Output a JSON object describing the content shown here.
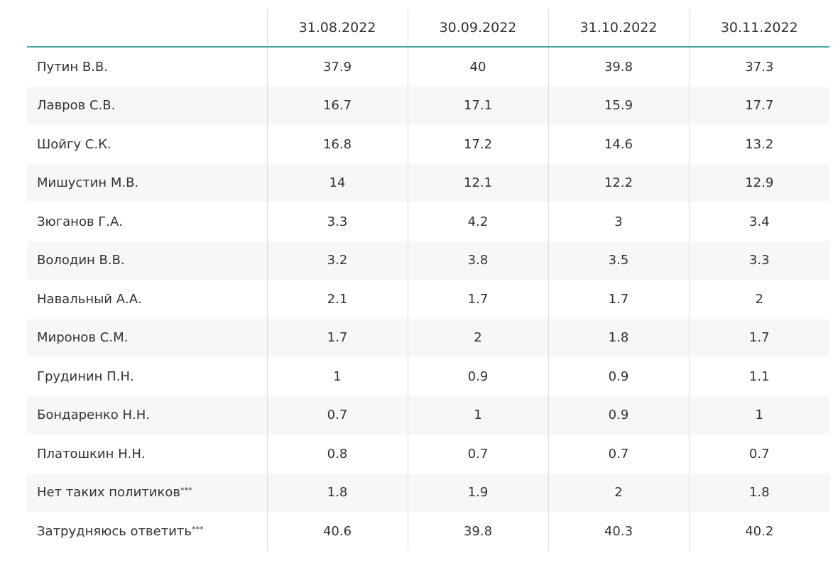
{
  "table": {
    "corner": "",
    "columns": [
      "31.08.2022",
      "30.09.2022",
      "31.10.2022",
      "30.11.2022"
    ],
    "rows": [
      {
        "name": "Путин В.В.",
        "note": "",
        "values": [
          "37.9",
          "40",
          "39.8",
          "37.3"
        ]
      },
      {
        "name": "Лавров С.В.",
        "note": "",
        "values": [
          "16.7",
          "17.1",
          "15.9",
          "17.7"
        ]
      },
      {
        "name": "Шойгу С.К.",
        "note": "",
        "values": [
          "16.8",
          "17.2",
          "14.6",
          "13.2"
        ]
      },
      {
        "name": "Мишустин М.В.",
        "note": "",
        "values": [
          "14",
          "12.1",
          "12.2",
          "12.9"
        ]
      },
      {
        "name": "Зюганов Г.А.",
        "note": "",
        "values": [
          "3.3",
          "4.2",
          "3",
          "3.4"
        ]
      },
      {
        "name": "Володин В.В.",
        "note": "",
        "values": [
          "3.2",
          "3.8",
          "3.5",
          "3.3"
        ]
      },
      {
        "name": "Навальный А.А.",
        "note": "",
        "values": [
          "2.1",
          "1.7",
          "1.7",
          "2"
        ]
      },
      {
        "name": "Миронов С.М.",
        "note": "",
        "values": [
          "1.7",
          "2",
          "1.8",
          "1.7"
        ]
      },
      {
        "name": "Грудинин П.Н.",
        "note": "",
        "values": [
          "1",
          "0.9",
          "0.9",
          "1.1"
        ]
      },
      {
        "name": "Бондаренко Н.Н.",
        "note": "",
        "values": [
          "0.7",
          "1",
          "0.9",
          "1"
        ]
      },
      {
        "name": "Платошкин Н.Н.",
        "note": "",
        "values": [
          "0.8",
          "0.7",
          "0.7",
          "0.7"
        ]
      },
      {
        "name": "Нет таких политиков",
        "note": "***",
        "values": [
          "1.8",
          "1.9",
          "2",
          "1.8"
        ]
      },
      {
        "name": "Затрудняюсь ответить",
        "note": "***",
        "values": [
          "40.6",
          "39.8",
          "40.3",
          "40.2"
        ]
      }
    ]
  }
}
